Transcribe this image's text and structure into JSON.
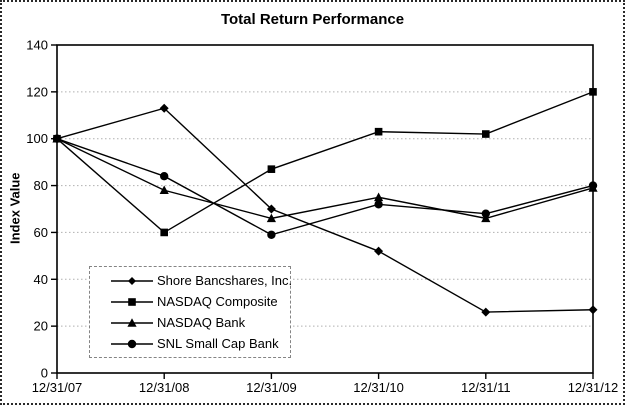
{
  "chart_data": {
    "type": "line",
    "title": "Total Return Performance",
    "xlabel": "",
    "ylabel": "Index Value",
    "ylim": [
      0,
      140
    ],
    "y_ticks": [
      0,
      20,
      40,
      60,
      80,
      100,
      120,
      140
    ],
    "grid": true,
    "legend_position": "inside bottom-left",
    "categories": [
      "12/31/07",
      "12/31/08",
      "12/31/09",
      "12/31/10",
      "12/31/11",
      "12/31/12"
    ],
    "series": [
      {
        "name": "Shore Bancshares, Inc.",
        "marker": "diamond",
        "color": "#000000",
        "values": [
          100,
          113,
          70,
          52,
          26,
          27
        ]
      },
      {
        "name": "NASDAQ Composite",
        "marker": "square",
        "color": "#000000",
        "values": [
          100,
          60,
          87,
          103,
          102,
          120
        ]
      },
      {
        "name": "NASDAQ Bank",
        "marker": "triangle",
        "color": "#000000",
        "values": [
          100,
          78,
          66,
          75,
          66,
          79
        ]
      },
      {
        "name": "SNL Small Cap Bank",
        "marker": "circle",
        "color": "#000000",
        "values": [
          100,
          84,
          59,
          72,
          68,
          80
        ]
      }
    ],
    "colors": {
      "line": "#000000",
      "grid": "#b0b0b0",
      "frame": "#000000",
      "background": "#ffffff",
      "legend_border": "#848484"
    }
  }
}
